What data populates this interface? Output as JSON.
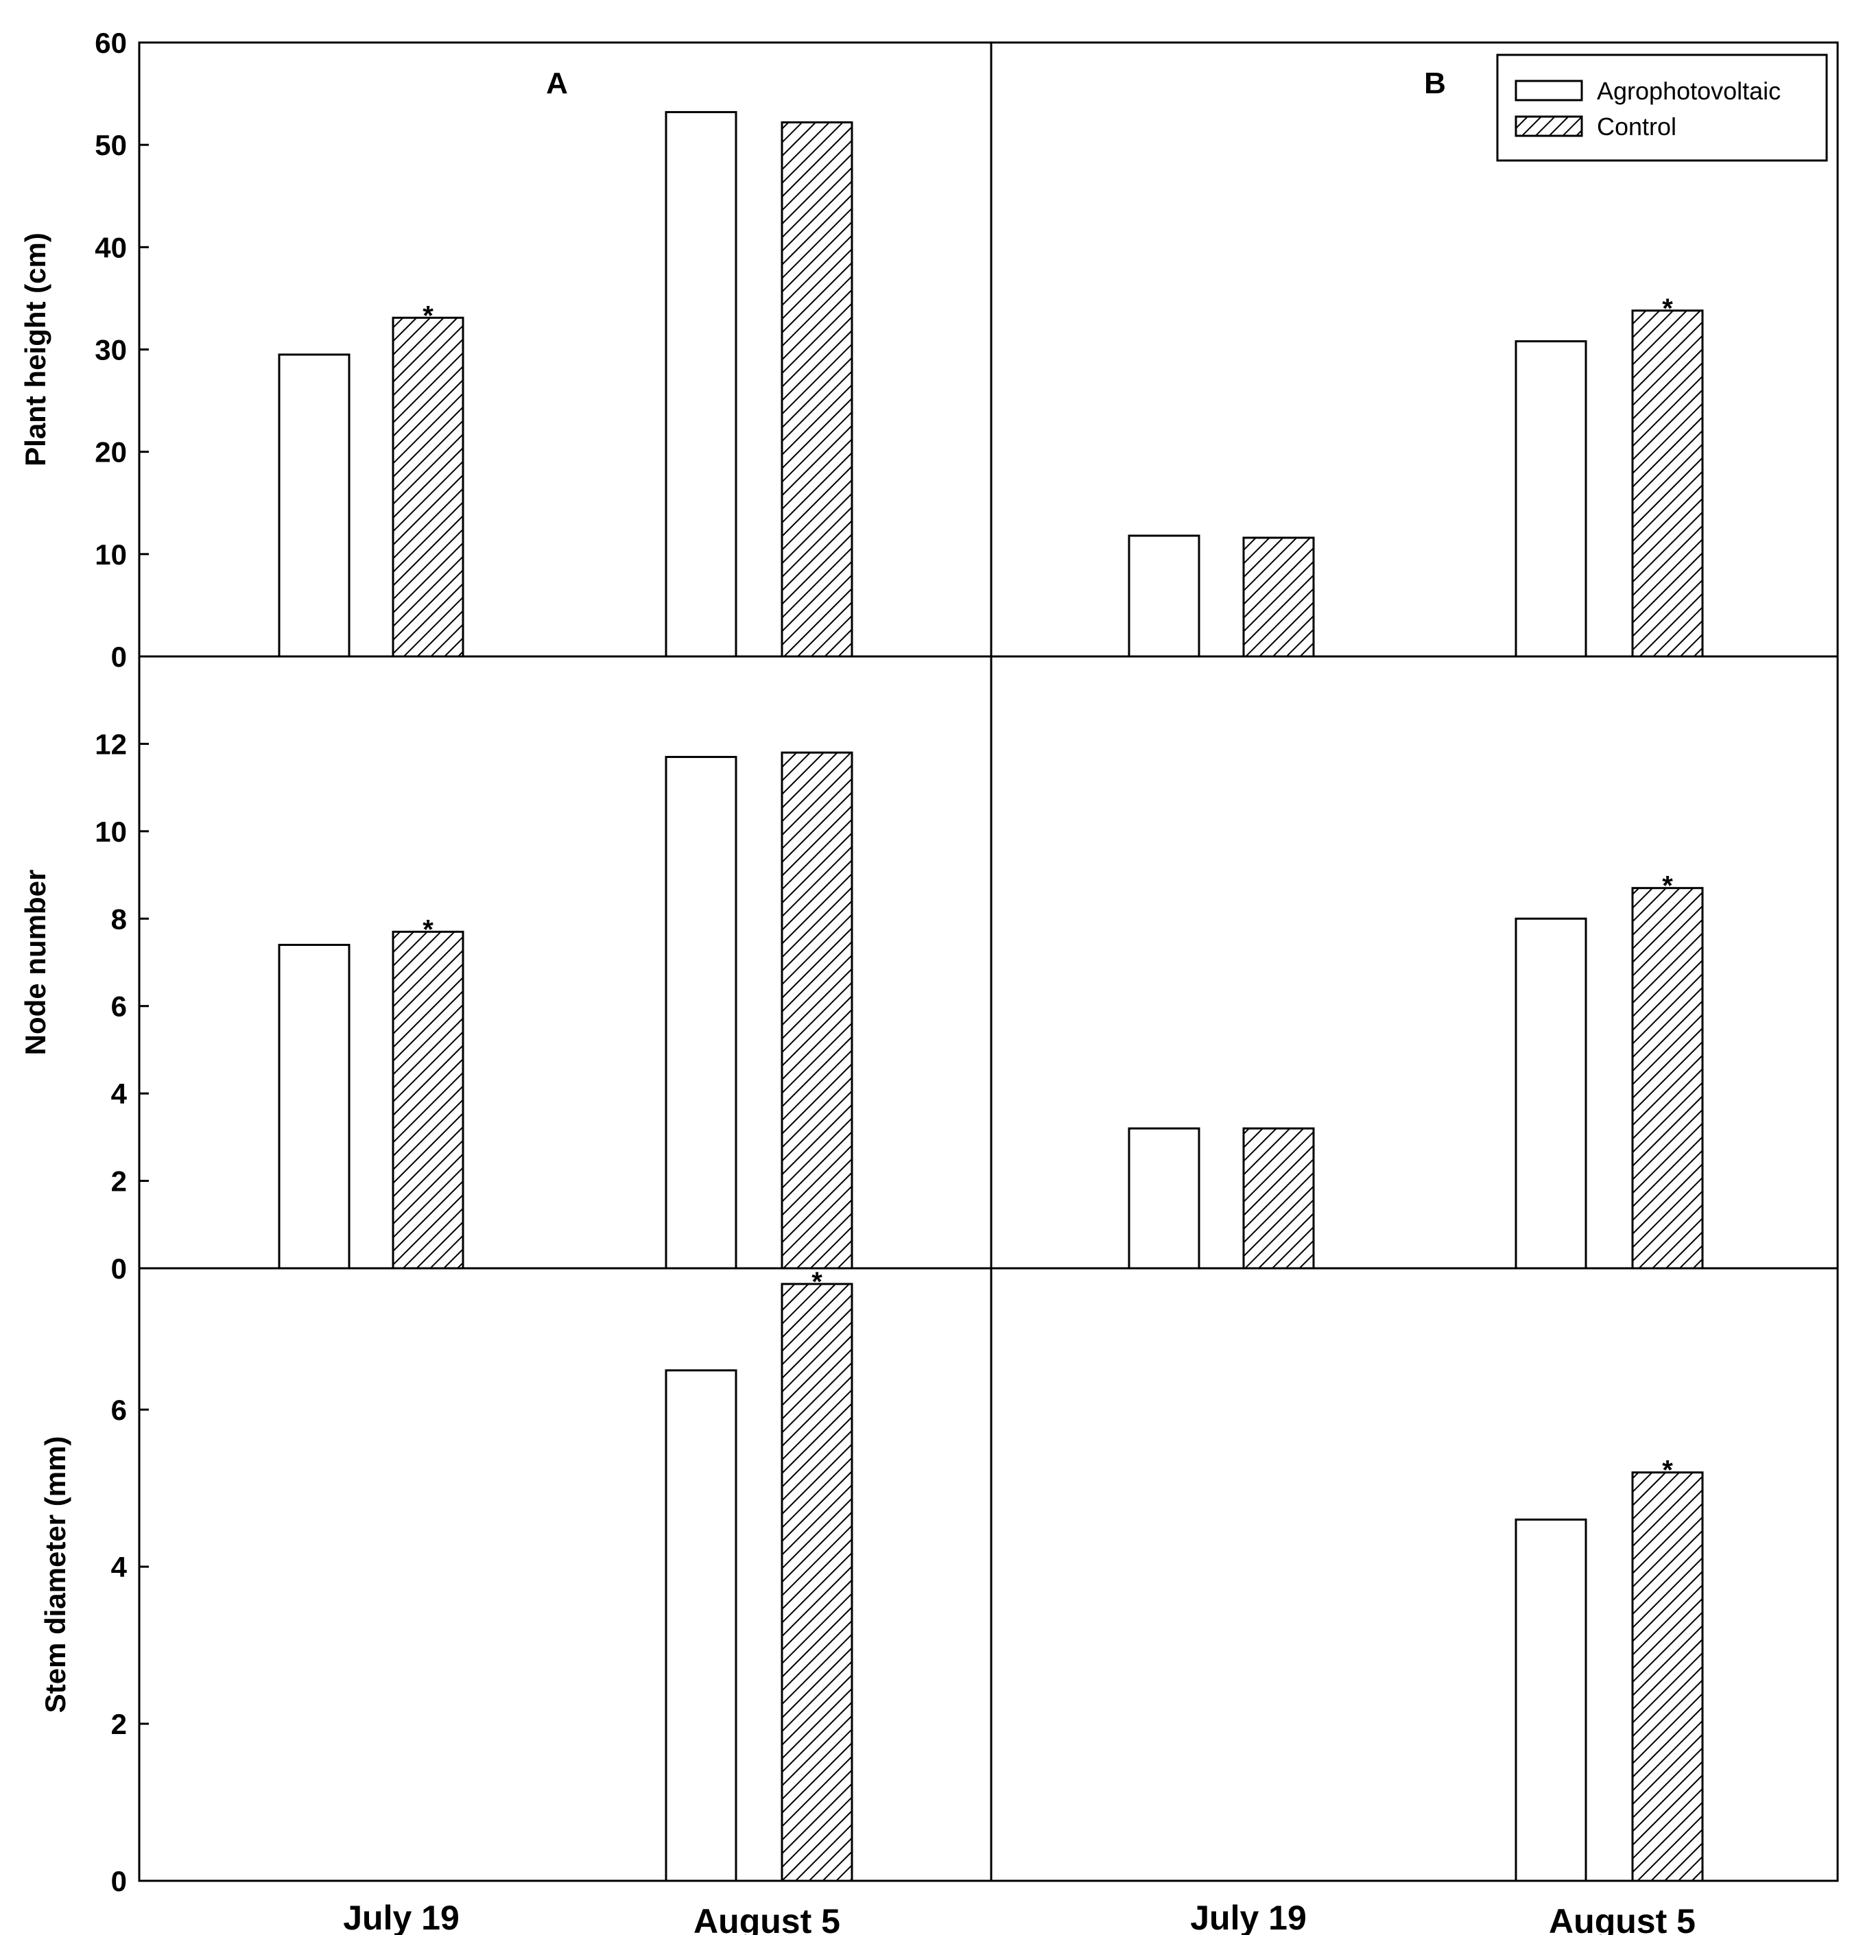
{
  "chart_data": {
    "type": "bar",
    "layout": "3 rows x 2 columns",
    "panel_labels": [
      "A",
      "B"
    ],
    "categories": [
      "July 19",
      "August 5"
    ],
    "legend": {
      "position": "top-right",
      "entries": [
        {
          "name": "Agrophotovoltaic",
          "style": "open"
        },
        {
          "name": "Control",
          "style": "hatched"
        }
      ]
    },
    "rows": [
      {
        "ylabel": "Plant height (cm)",
        "ylim": [
          0,
          60
        ],
        "yticks": [
          0,
          10,
          20,
          30,
          40,
          50,
          60
        ],
        "panels": [
          {
            "panel": "A",
            "series": [
              {
                "name": "Agrophotovoltaic",
                "values": [
                  29.5,
                  53.2
                ]
              },
              {
                "name": "Control",
                "values": [
                  33.1,
                  52.2
                ]
              }
            ],
            "significant": [
              {
                "category": "July 19",
                "series": "Control"
              }
            ]
          },
          {
            "panel": "B",
            "series": [
              {
                "name": "Agrophotovoltaic",
                "values": [
                  11.8,
                  30.8
                ]
              },
              {
                "name": "Control",
                "values": [
                  11.6,
                  33.8
                ]
              }
            ],
            "significant": [
              {
                "category": "August 5",
                "series": "Control"
              }
            ]
          }
        ]
      },
      {
        "ylabel": "Node number",
        "ylim": [
          0,
          14
        ],
        "yticks": [
          0,
          2,
          4,
          6,
          8,
          10,
          12
        ],
        "panels": [
          {
            "panel": "A",
            "series": [
              {
                "name": "Agrophotovoltaic",
                "values": [
                  7.4,
                  11.7
                ]
              },
              {
                "name": "Control",
                "values": [
                  7.7,
                  11.8
                ]
              }
            ],
            "significant": [
              {
                "category": "July 19",
                "series": "Control"
              }
            ]
          },
          {
            "panel": "B",
            "series": [
              {
                "name": "Agrophotovoltaic",
                "values": [
                  3.2,
                  8.0
                ]
              },
              {
                "name": "Control",
                "values": [
                  3.2,
                  8.7
                ]
              }
            ],
            "significant": [
              {
                "category": "August 5",
                "series": "Control"
              }
            ]
          }
        ]
      },
      {
        "ylabel": "Stem diameter (mm)",
        "ylim": [
          0,
          7.8
        ],
        "yticks": [
          0,
          2,
          4,
          6
        ],
        "panels": [
          {
            "panel": "A",
            "series": [
              {
                "name": "Agrophotovoltaic",
                "values": [
                  null,
                  6.5
                ]
              },
              {
                "name": "Control",
                "values": [
                  null,
                  7.6
                ]
              }
            ],
            "significant": [
              {
                "category": "August 5",
                "series": "Control"
              }
            ]
          },
          {
            "panel": "B",
            "series": [
              {
                "name": "Agrophotovoltaic",
                "values": [
                  null,
                  4.6
                ]
              },
              {
                "name": "Control",
                "values": [
                  null,
                  5.2
                ]
              }
            ],
            "significant": [
              {
                "category": "August 5",
                "series": "Control"
              }
            ]
          }
        ]
      }
    ],
    "significance_marker": "*",
    "colors": {
      "frame": "#000000",
      "open_fill": "#ffffff",
      "hatch": "#000000"
    }
  }
}
